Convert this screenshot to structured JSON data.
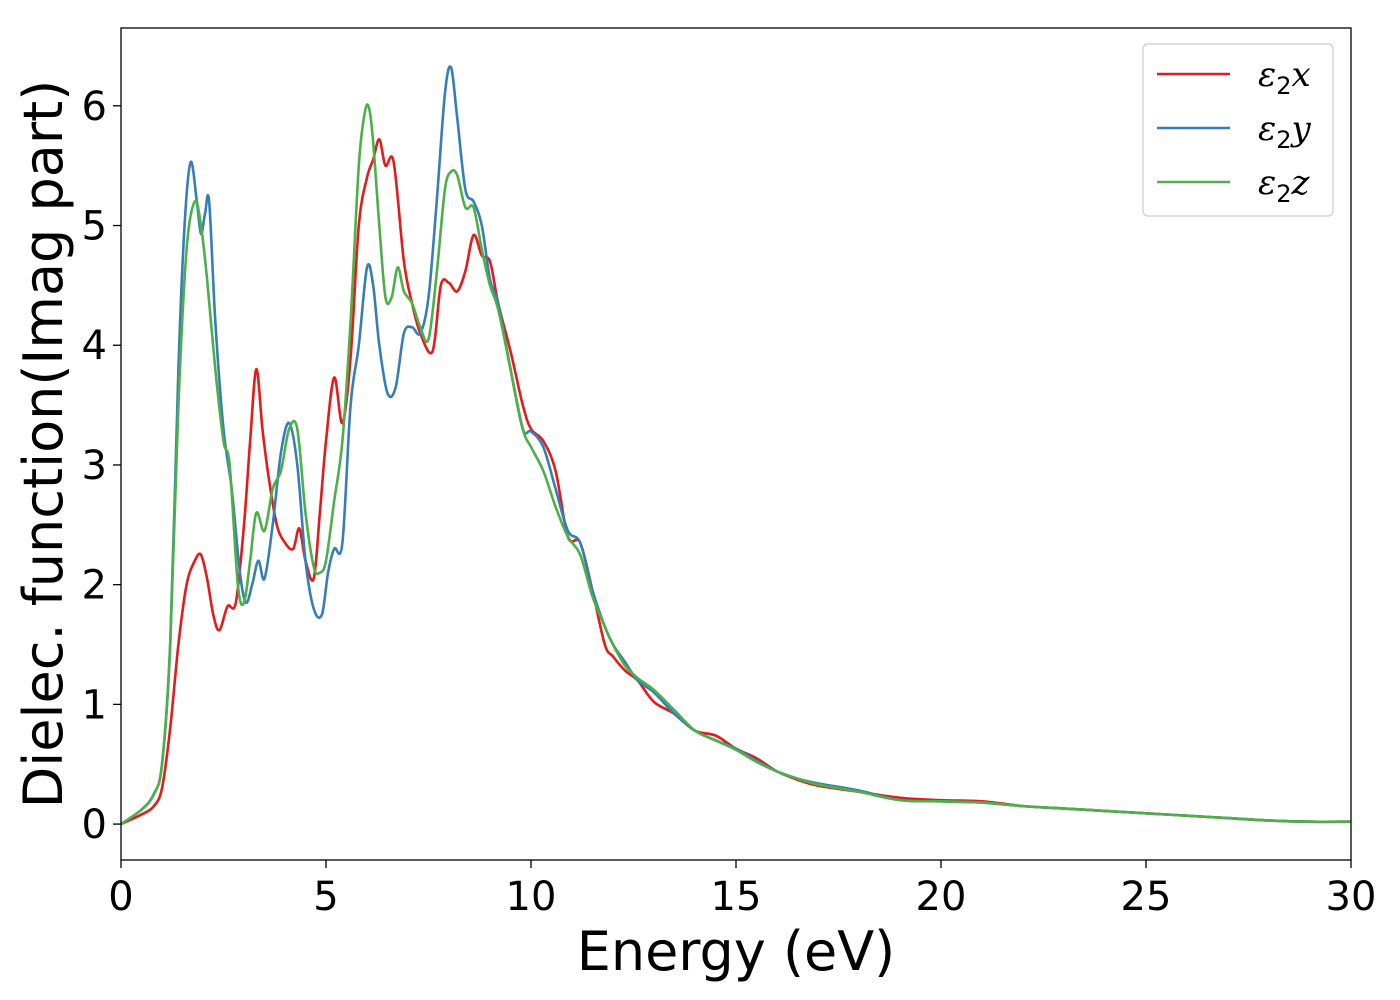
{
  "chart_data": {
    "type": "line",
    "title": "",
    "xlabel": "Energy (eV)",
    "ylabel": "Dielec. function(Imag part)",
    "xlim": [
      0,
      30
    ],
    "ylim": [
      -0.3,
      6.65
    ],
    "xticks": [
      0,
      5,
      10,
      15,
      20,
      25,
      30
    ],
    "yticks": [
      0,
      1,
      2,
      3,
      4,
      5,
      6
    ],
    "xtick_labels": [
      "0",
      "5",
      "10",
      "15",
      "20",
      "25",
      "30"
    ],
    "ytick_labels": [
      "0",
      "1",
      "2",
      "3",
      "4",
      "5",
      "6"
    ],
    "grid": false,
    "legend_position": "top-right",
    "series": [
      {
        "name": "ε2x",
        "symbol": "ε",
        "subscript": "2",
        "var": "x",
        "color": "#e41a1c",
        "x": [
          0,
          0.5,
          0.8,
          1.0,
          1.2,
          1.4,
          1.6,
          1.8,
          1.95,
          2.1,
          2.25,
          2.4,
          2.6,
          2.8,
          3.0,
          3.15,
          3.3,
          3.45,
          3.6,
          3.8,
          4.0,
          4.2,
          4.35,
          4.5,
          4.7,
          4.85,
          5.0,
          5.2,
          5.4,
          5.6,
          5.8,
          6.0,
          6.15,
          6.3,
          6.45,
          6.65,
          6.9,
          7.1,
          7.3,
          7.6,
          7.8,
          8.0,
          8.2,
          8.4,
          8.6,
          8.8,
          9.0,
          9.2,
          9.5,
          9.8,
          10.0,
          10.3,
          10.6,
          10.9,
          11.2,
          11.5,
          11.8,
          12.0,
          12.3,
          12.6,
          13.0,
          13.5,
          14.0,
          14.5,
          15.0,
          15.5,
          16.0,
          16.5,
          17.0,
          18.0,
          19.0,
          20.0,
          21.0,
          22.0,
          23.0,
          24.0,
          25.0,
          26.0,
          27.0,
          28.0,
          29.0,
          30.0
        ],
        "y": [
          0.0,
          0.08,
          0.15,
          0.3,
          0.8,
          1.5,
          2.0,
          2.2,
          2.25,
          2.05,
          1.75,
          1.62,
          1.82,
          1.85,
          2.5,
          3.2,
          3.8,
          3.3,
          2.9,
          2.5,
          2.35,
          2.3,
          2.47,
          2.2,
          2.05,
          2.6,
          3.2,
          3.73,
          3.35,
          3.9,
          5.0,
          5.4,
          5.55,
          5.72,
          5.5,
          5.53,
          4.7,
          4.35,
          4.1,
          3.95,
          4.5,
          4.52,
          4.45,
          4.62,
          4.92,
          4.75,
          4.7,
          4.35,
          3.95,
          3.5,
          3.3,
          3.2,
          2.95,
          2.4,
          2.35,
          1.95,
          1.5,
          1.4,
          1.28,
          1.2,
          1.02,
          0.92,
          0.78,
          0.74,
          0.63,
          0.55,
          0.44,
          0.37,
          0.32,
          0.27,
          0.22,
          0.2,
          0.19,
          0.15,
          0.13,
          0.11,
          0.09,
          0.07,
          0.05,
          0.03,
          0.02,
          0.02
        ]
      },
      {
        "name": "ε2y",
        "symbol": "ε",
        "subscript": "2",
        "var": "y",
        "color": "#377eb8",
        "x": [
          0,
          0.5,
          0.8,
          1.0,
          1.2,
          1.4,
          1.55,
          1.7,
          1.85,
          1.95,
          2.05,
          2.15,
          2.3,
          2.5,
          2.7,
          2.9,
          3.05,
          3.2,
          3.35,
          3.5,
          3.7,
          3.9,
          4.1,
          4.3,
          4.5,
          4.7,
          4.9,
          5.05,
          5.2,
          5.4,
          5.6,
          5.8,
          6.0,
          6.15,
          6.3,
          6.5,
          6.7,
          6.9,
          7.1,
          7.3,
          7.5,
          7.7,
          7.9,
          8.05,
          8.2,
          8.4,
          8.6,
          8.8,
          9.0,
          9.2,
          9.5,
          9.8,
          10.0,
          10.3,
          10.6,
          10.9,
          11.2,
          11.5,
          11.8,
          12.0,
          12.3,
          12.6,
          13.0,
          13.5,
          14.0,
          14.5,
          15.0,
          15.5,
          16.0,
          16.5,
          17.0,
          18.0,
          19.0,
          20.0,
          21.0,
          22.0,
          23.0,
          24.0,
          25.0,
          26.0,
          27.0,
          28.0,
          29.0,
          30.0
        ],
        "y": [
          0.0,
          0.12,
          0.25,
          0.5,
          1.5,
          3.8,
          5.0,
          5.53,
          5.2,
          4.93,
          5.1,
          5.2,
          4.2,
          3.3,
          2.8,
          2.1,
          1.85,
          2.0,
          2.2,
          2.05,
          2.5,
          3.1,
          3.35,
          3.0,
          2.2,
          1.8,
          1.75,
          2.1,
          2.3,
          2.35,
          3.5,
          4.0,
          4.65,
          4.5,
          4.0,
          3.6,
          3.65,
          4.1,
          4.15,
          4.1,
          4.4,
          5.2,
          6.1,
          6.32,
          5.9,
          5.3,
          5.2,
          5.0,
          4.55,
          4.35,
          3.8,
          3.3,
          3.28,
          3.15,
          2.8,
          2.45,
          2.35,
          1.95,
          1.65,
          1.5,
          1.35,
          1.2,
          1.1,
          0.92,
          0.78,
          0.7,
          0.63,
          0.53,
          0.44,
          0.38,
          0.34,
          0.28,
          0.2,
          0.19,
          0.18,
          0.15,
          0.13,
          0.11,
          0.09,
          0.07,
          0.05,
          0.03,
          0.02,
          0.02
        ]
      },
      {
        "name": "ε2z",
        "symbol": "ε",
        "subscript": "2",
        "var": "z",
        "color": "#4daf4a",
        "x": [
          0,
          0.5,
          0.8,
          1.0,
          1.2,
          1.4,
          1.6,
          1.8,
          1.95,
          2.1,
          2.3,
          2.5,
          2.65,
          2.85,
          3.0,
          3.15,
          3.3,
          3.5,
          3.7,
          3.9,
          4.1,
          4.3,
          4.5,
          4.7,
          4.85,
          5.0,
          5.2,
          5.4,
          5.6,
          5.8,
          5.95,
          6.05,
          6.15,
          6.3,
          6.45,
          6.6,
          6.75,
          6.9,
          7.1,
          7.3,
          7.5,
          7.7,
          7.9,
          8.05,
          8.2,
          8.4,
          8.6,
          8.8,
          9.0,
          9.2,
          9.5,
          9.8,
          10.0,
          10.3,
          10.6,
          10.9,
          11.2,
          11.5,
          11.8,
          12.0,
          12.3,
          12.6,
          13.0,
          13.5,
          14.0,
          14.5,
          15.0,
          15.5,
          16.0,
          16.5,
          17.0,
          18.0,
          19.0,
          20.0,
          21.0,
          22.0,
          23.0,
          24.0,
          25.0,
          26.0,
          27.0,
          28.0,
          29.0,
          30.0
        ],
        "y": [
          0.0,
          0.12,
          0.25,
          0.5,
          1.5,
          3.5,
          4.8,
          5.2,
          5.0,
          4.55,
          3.8,
          3.2,
          3.0,
          2.0,
          1.85,
          2.2,
          2.6,
          2.45,
          2.8,
          2.95,
          3.3,
          3.3,
          2.6,
          2.15,
          2.1,
          2.2,
          2.7,
          3.2,
          4.2,
          5.5,
          5.95,
          5.98,
          5.7,
          5.0,
          4.4,
          4.4,
          4.65,
          4.45,
          4.35,
          4.15,
          4.05,
          4.6,
          5.3,
          5.45,
          5.42,
          5.15,
          5.15,
          4.8,
          4.5,
          4.3,
          3.8,
          3.3,
          3.15,
          2.95,
          2.65,
          2.4,
          2.25,
          1.9,
          1.65,
          1.5,
          1.32,
          1.22,
          1.12,
          0.95,
          0.78,
          0.7,
          0.62,
          0.52,
          0.44,
          0.38,
          0.33,
          0.27,
          0.2,
          0.19,
          0.18,
          0.15,
          0.13,
          0.11,
          0.09,
          0.07,
          0.05,
          0.03,
          0.02,
          0.02
        ]
      }
    ]
  }
}
